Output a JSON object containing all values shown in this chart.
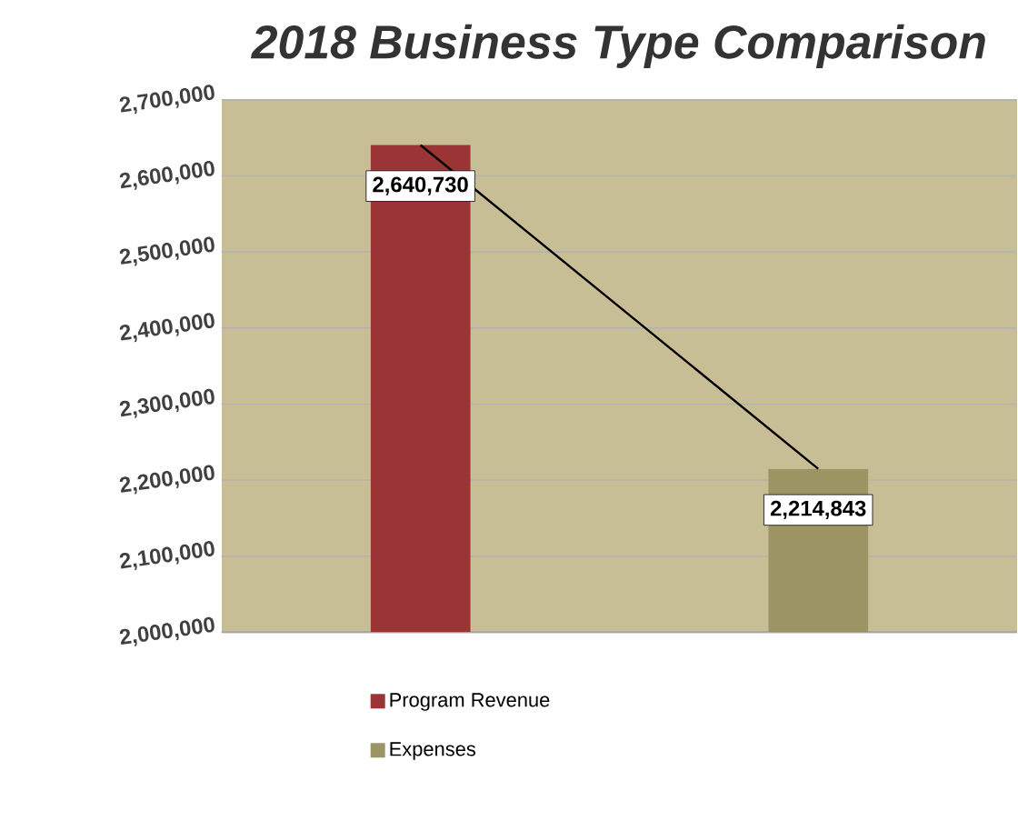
{
  "chart_data": {
    "type": "bar",
    "title": "2018 Business Type Comparison",
    "categories": [
      null,
      null
    ],
    "series": [
      {
        "name": "Program Revenue",
        "color": "#9b3535",
        "values": [
          2640730,
          null
        ],
        "value_labels": [
          "2,640,730",
          null
        ]
      },
      {
        "name": "Expenses",
        "color": "#9c9463",
        "values": [
          null,
          2214843
        ],
        "value_labels": [
          null,
          "2,214,843"
        ]
      },
      {
        "type": "line",
        "color": "#000000",
        "values": [
          2640730,
          2214843
        ]
      }
    ],
    "ylim": [
      2000000,
      2700000
    ],
    "yticks": [
      {
        "value": 2000000,
        "label": "2,000,000"
      },
      {
        "value": 2100000,
        "label": "2,100,000"
      },
      {
        "value": 2200000,
        "label": "2,200,000"
      },
      {
        "value": 2300000,
        "label": "2,300,000"
      },
      {
        "value": 2400000,
        "label": "2,400,000"
      },
      {
        "value": 2500000,
        "label": "2,500,000"
      },
      {
        "value": 2600000,
        "label": "2,600,000"
      },
      {
        "value": 2700000,
        "label": "2,700,000"
      }
    ],
    "grid": "y",
    "legend": "bottom",
    "marker": "none"
  }
}
